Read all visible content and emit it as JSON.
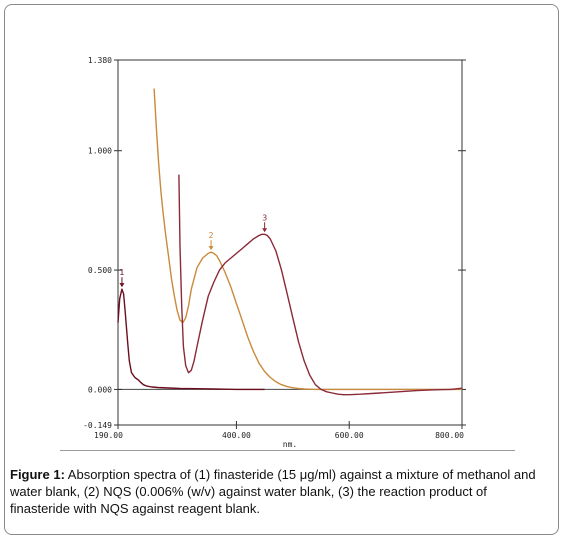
{
  "chart_data": {
    "type": "line",
    "title": "",
    "xlabel": "nm.",
    "ylabel": "",
    "xlim": [
      190,
      800
    ],
    "ylim": [
      -0.149,
      1.38
    ],
    "x_ticks": [
      190,
      400,
      600,
      800
    ],
    "x_tick_labels": [
      "190.00",
      "400.00",
      "600.00",
      "800.00"
    ],
    "y_ticks": [
      -0.149,
      0,
      0.5,
      1.0,
      1.38
    ],
    "y_tick_labels": [
      "-0.149",
      "0.000",
      "0.500",
      "1.000",
      "1.380"
    ],
    "series": [
      {
        "name": "1",
        "color": "#6a0d1e",
        "x": [
          190,
          193,
          197,
          200,
          203,
          207,
          210,
          214,
          220,
          226,
          230,
          235,
          240,
          250,
          260,
          280,
          300,
          330,
          360,
          380,
          400,
          450
        ],
        "y": [
          0.28,
          0.38,
          0.42,
          0.4,
          0.32,
          0.2,
          0.12,
          0.07,
          0.05,
          0.04,
          0.03,
          0.02,
          0.015,
          0.01,
          0.008,
          0.006,
          0.004,
          0.003,
          0.002,
          0.001,
          0.0,
          0.0
        ]
      },
      {
        "name": "2",
        "color": "#c98a3c",
        "x": [
          254,
          258,
          262,
          266,
          270,
          275,
          280,
          285,
          290,
          295,
          300,
          305,
          310,
          315,
          320,
          330,
          340,
          350,
          355,
          360,
          365,
          370,
          380,
          390,
          400,
          410,
          420,
          430,
          440,
          450,
          460,
          470,
          480,
          490,
          500,
          510,
          520,
          530,
          540,
          550,
          560,
          580,
          600,
          650,
          700,
          750,
          800
        ],
        "y": [
          1.26,
          1.1,
          0.95,
          0.83,
          0.74,
          0.64,
          0.55,
          0.46,
          0.39,
          0.33,
          0.29,
          0.28,
          0.3,
          0.35,
          0.42,
          0.51,
          0.55,
          0.57,
          0.575,
          0.57,
          0.56,
          0.54,
          0.49,
          0.43,
          0.36,
          0.29,
          0.22,
          0.16,
          0.11,
          0.075,
          0.05,
          0.032,
          0.02,
          0.012,
          0.007,
          0.004,
          0.002,
          0.001,
          0.0,
          0.0,
          0.0,
          0.0,
          0.0,
          0.0,
          0.0,
          0.0,
          0.0
        ]
      },
      {
        "name": "3",
        "color": "#8b2a3a",
        "x": [
          298,
          300,
          303,
          306,
          310,
          315,
          320,
          325,
          330,
          340,
          350,
          360,
          370,
          380,
          390,
          400,
          410,
          420,
          430,
          440,
          445,
          450,
          455,
          460,
          470,
          480,
          490,
          500,
          510,
          520,
          530,
          540,
          550,
          560,
          570,
          580,
          590,
          600,
          610,
          620,
          640,
          660,
          680,
          700,
          720,
          740,
          760,
          780,
          800
        ],
        "y": [
          0.9,
          0.6,
          0.35,
          0.18,
          0.1,
          0.07,
          0.08,
          0.12,
          0.18,
          0.29,
          0.39,
          0.45,
          0.5,
          0.53,
          0.55,
          0.57,
          0.59,
          0.61,
          0.63,
          0.645,
          0.65,
          0.65,
          0.645,
          0.63,
          0.58,
          0.5,
          0.4,
          0.3,
          0.2,
          0.12,
          0.06,
          0.02,
          0.0,
          -0.01,
          -0.015,
          -0.02,
          -0.022,
          -0.022,
          -0.021,
          -0.02,
          -0.017,
          -0.014,
          -0.011,
          -0.008,
          -0.005,
          -0.003,
          -0.001,
          0.0,
          0.005
        ]
      }
    ],
    "annotations": [
      {
        "text": "1",
        "x": 197,
        "y": 0.42,
        "color": "#6a0d1e"
      },
      {
        "text": "2",
        "x": 355,
        "y": 0.575,
        "color": "#c98a3c"
      },
      {
        "text": "3",
        "x": 450,
        "y": 0.65,
        "color": "#8b2a3a"
      }
    ],
    "grid": false
  },
  "caption": {
    "prefix": "Figure 1:",
    "text": " Absorption spectra of (1) finasteride (15 μg/ml) against a mixture of methanol and water blank, (2) NQS (0.006% (w/v) against water blank, (3) the reaction product of finasteride with NQS against reagent blank."
  }
}
